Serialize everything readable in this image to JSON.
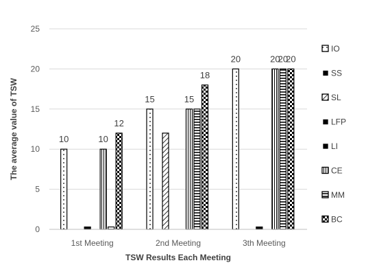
{
  "chart_data": {
    "type": "bar",
    "title": "",
    "xlabel": "TSW Results Each Meeting",
    "ylabel": "The average value of TSW",
    "ylim": [
      0,
      25
    ],
    "yticks": [
      0,
      5,
      10,
      15,
      20,
      25
    ],
    "grid": true,
    "legend_position": "right",
    "categories": [
      "1st Meeting",
      "2nd Meeting",
      "3th Meeting"
    ],
    "series": [
      {
        "name": "IO",
        "values": [
          10,
          15,
          20
        ],
        "labels": [
          "10",
          "15",
          "20"
        ],
        "pattern": "dots"
      },
      {
        "name": "SS",
        "values": [
          0,
          0,
          0
        ],
        "labels": [
          "",
          "",
          ""
        ],
        "pattern": "solid"
      },
      {
        "name": "SL",
        "values": [
          0,
          12,
          0
        ],
        "labels": [
          "",
          "",
          ""
        ],
        "pattern": "diagonal"
      },
      {
        "name": "LFP",
        "values": [
          0.3,
          0,
          0.3
        ],
        "labels": [
          "",
          "",
          ""
        ],
        "pattern": "solid"
      },
      {
        "name": "LI",
        "values": [
          0,
          0,
          0
        ],
        "labels": [
          "",
          "",
          ""
        ],
        "pattern": "solid"
      },
      {
        "name": "CE",
        "values": [
          10,
          15,
          20
        ],
        "labels": [
          "10",
          "15",
          "20"
        ],
        "pattern": "vertical"
      },
      {
        "name": "MM",
        "values": [
          0.3,
          15,
          20
        ],
        "labels": [
          "",
          "",
          "20"
        ],
        "pattern": "horizontal"
      },
      {
        "name": "BC",
        "values": [
          12,
          18,
          20
        ],
        "labels": [
          "12",
          "18",
          "20"
        ],
        "pattern": "checker"
      }
    ]
  }
}
